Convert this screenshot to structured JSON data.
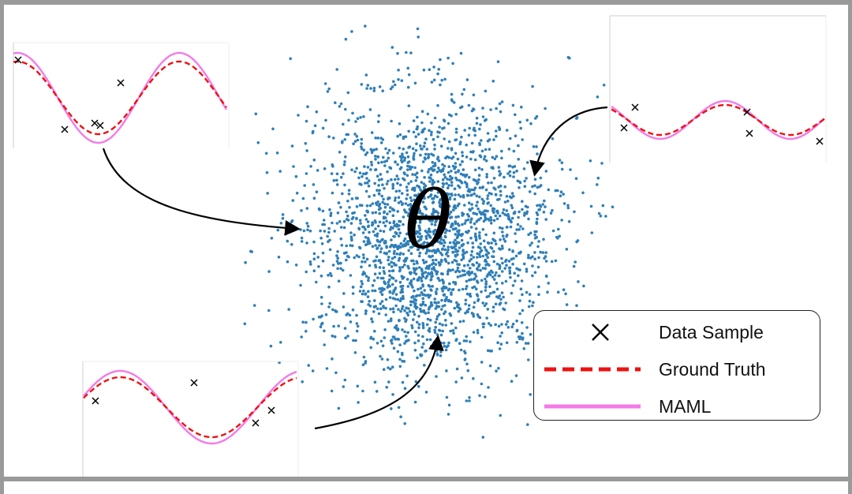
{
  "diagram": {
    "center_symbol": "θ",
    "point_cloud_color": "#2f7fb8",
    "panels": [
      {
        "name": "task-top-left"
      },
      {
        "name": "task-top-right"
      },
      {
        "name": "task-bottom-left"
      }
    ]
  },
  "legend": {
    "items": [
      {
        "label": "Data Sample",
        "marker": "x-marker",
        "color": "#000000"
      },
      {
        "label": "Ground Truth",
        "marker": "dashed-line",
        "color": "#ee1111"
      },
      {
        "label": "MAML",
        "marker": "solid-line",
        "color": "#f47ae8"
      }
    ]
  }
}
